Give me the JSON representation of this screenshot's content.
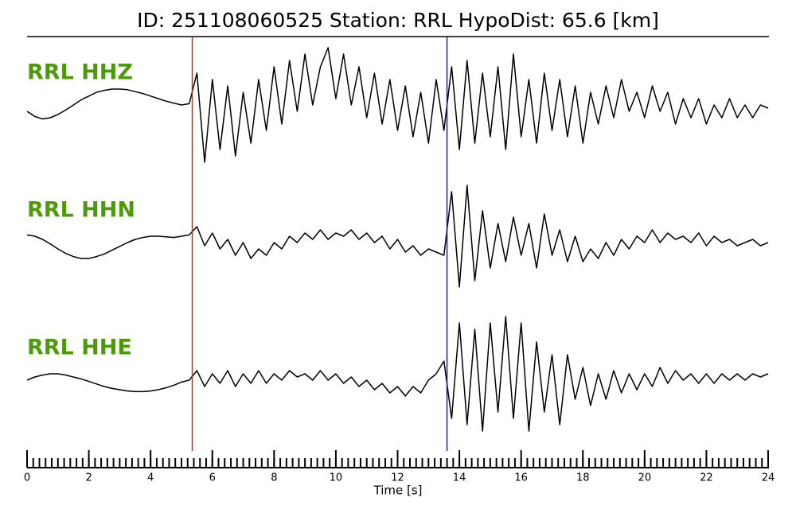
{
  "chart_data": {
    "type": "line",
    "title": "ID: 251108060525   Station: RRL   HypoDist:    65.6 [km]",
    "xlabel": "Time [s]",
    "xlim": [
      0,
      24
    ],
    "xticks": [
      0,
      2,
      4,
      6,
      8,
      10,
      12,
      14,
      16,
      18,
      20,
      22,
      24
    ],
    "xminor_step": 0.2,
    "ylim": [
      -1,
      1
    ],
    "label_color": "#4c9a0a",
    "vlines": [
      {
        "x": 5.35,
        "color": "#e8191c"
      },
      {
        "x": 13.6,
        "color": "#1a1adc"
      }
    ],
    "x": [
      0,
      0.25,
      0.5,
      0.75,
      1,
      1.25,
      1.5,
      1.75,
      2,
      2.25,
      2.5,
      2.75,
      3,
      3.25,
      3.5,
      3.75,
      4,
      4.25,
      4.5,
      4.75,
      5,
      5.25,
      5.5,
      5.75,
      6,
      6.25,
      6.5,
      6.75,
      7,
      7.25,
      7.5,
      7.75,
      8,
      8.25,
      8.5,
      8.75,
      9,
      9.25,
      9.5,
      9.75,
      10,
      10.25,
      10.5,
      10.75,
      11,
      11.25,
      11.5,
      11.75,
      12,
      12.25,
      12.5,
      12.75,
      13,
      13.25,
      13.5,
      13.75,
      14,
      14.25,
      14.5,
      14.75,
      15,
      15.25,
      15.5,
      15.75,
      16,
      16.25,
      16.5,
      16.75,
      17,
      17.25,
      17.5,
      17.75,
      18,
      18.25,
      18.5,
      18.75,
      19,
      19.25,
      19.5,
      19.75,
      20,
      20.25,
      20.5,
      20.75,
      21,
      21.25,
      21.5,
      21.75,
      22,
      22.25,
      22.5,
      22.75,
      23,
      23.25,
      23.5,
      23.75,
      24
    ],
    "series": [
      {
        "name": "RRL HHZ",
        "color": "#000000",
        "values": [
          0,
          -0.08,
          -0.12,
          -0.1,
          -0.05,
          0.02,
          0.1,
          0.18,
          0.24,
          0.3,
          0.33,
          0.35,
          0.35,
          0.34,
          0.31,
          0.28,
          0.24,
          0.2,
          0.16,
          0.13,
          0.1,
          0.12,
          0.6,
          -0.8,
          0.5,
          -0.6,
          0.4,
          -0.7,
          0.3,
          -0.5,
          0.5,
          -0.3,
          0.7,
          -0.2,
          0.8,
          0.0,
          0.9,
          0.1,
          0.7,
          1.0,
          0.2,
          0.9,
          0.1,
          0.7,
          -0.1,
          0.6,
          -0.2,
          0.5,
          -0.3,
          0.4,
          -0.4,
          0.3,
          -0.5,
          0.5,
          -0.3,
          0.7,
          -0.6,
          0.8,
          -0.5,
          0.6,
          -0.4,
          0.7,
          -0.6,
          0.9,
          -0.4,
          0.5,
          -0.5,
          0.6,
          -0.3,
          0.5,
          -0.4,
          0.4,
          -0.5,
          0.3,
          -0.2,
          0.4,
          -0.1,
          0.5,
          0.0,
          0.3,
          -0.1,
          0.4,
          0.0,
          0.3,
          -0.2,
          0.2,
          -0.1,
          0.2,
          -0.2,
          0.1,
          -0.1,
          0.2,
          -0.1,
          0.1,
          -0.1,
          0.1,
          0.05
        ]
      },
      {
        "name": "RRL HHN",
        "color": "#000000",
        "values": [
          0.12,
          0.1,
          0.05,
          -0.02,
          -0.1,
          -0.17,
          -0.22,
          -0.25,
          -0.25,
          -0.22,
          -0.18,
          -0.12,
          -0.06,
          0,
          0.05,
          0.08,
          0.1,
          0.1,
          0.09,
          0.08,
          0.1,
          0.12,
          0.25,
          -0.05,
          0.15,
          -0.1,
          0.05,
          -0.2,
          0.0,
          -0.25,
          -0.1,
          -0.2,
          0.0,
          -0.1,
          0.1,
          0.0,
          0.15,
          0.05,
          0.2,
          0.05,
          0.15,
          0.1,
          0.2,
          0.05,
          0.15,
          0.0,
          0.1,
          -0.1,
          0.05,
          -0.15,
          -0.05,
          -0.2,
          -0.1,
          -0.15,
          -0.2,
          0.8,
          -0.7,
          0.9,
          -0.6,
          0.5,
          -0.4,
          0.3,
          -0.3,
          0.4,
          -0.2,
          0.3,
          -0.4,
          0.45,
          -0.2,
          0.2,
          -0.3,
          0.1,
          -0.3,
          -0.1,
          -0.25,
          0.0,
          -0.2,
          0.05,
          -0.1,
          0.1,
          0.0,
          0.2,
          0.0,
          0.15,
          0.05,
          0.1,
          0.0,
          0.15,
          -0.05,
          0.1,
          0.0,
          0.05,
          -0.05,
          0.0,
          0.05,
          -0.05,
          0.0
        ]
      },
      {
        "name": "RRL HHE",
        "color": "#000000",
        "values": [
          0,
          0.05,
          0.08,
          0.1,
          0.1,
          0.08,
          0.05,
          0.02,
          -0.02,
          -0.06,
          -0.1,
          -0.13,
          -0.15,
          -0.17,
          -0.18,
          -0.18,
          -0.17,
          -0.15,
          -0.12,
          -0.08,
          -0.03,
          0.0,
          0.15,
          -0.1,
          0.1,
          -0.05,
          0.15,
          -0.1,
          0.1,
          -0.05,
          0.15,
          -0.05,
          0.1,
          0.0,
          0.15,
          0.05,
          0.1,
          0.0,
          0.15,
          0.0,
          0.1,
          -0.05,
          0.05,
          -0.1,
          0.0,
          -0.15,
          -0.05,
          -0.2,
          -0.1,
          -0.25,
          -0.1,
          -0.2,
          0.0,
          0.1,
          0.3,
          -0.6,
          0.9,
          -0.7,
          0.8,
          -0.8,
          0.9,
          -0.5,
          1.0,
          -0.6,
          0.9,
          -0.8,
          0.6,
          -0.5,
          0.4,
          -0.7,
          0.4,
          -0.3,
          0.2,
          -0.4,
          0.1,
          -0.3,
          0.15,
          -0.2,
          0.1,
          -0.15,
          0.1,
          -0.1,
          0.2,
          -0.05,
          0.15,
          0.0,
          0.1,
          -0.05,
          0.1,
          -0.05,
          0.1,
          0.0,
          0.1,
          0.0,
          0.1,
          0.05,
          0.1
        ]
      }
    ]
  }
}
